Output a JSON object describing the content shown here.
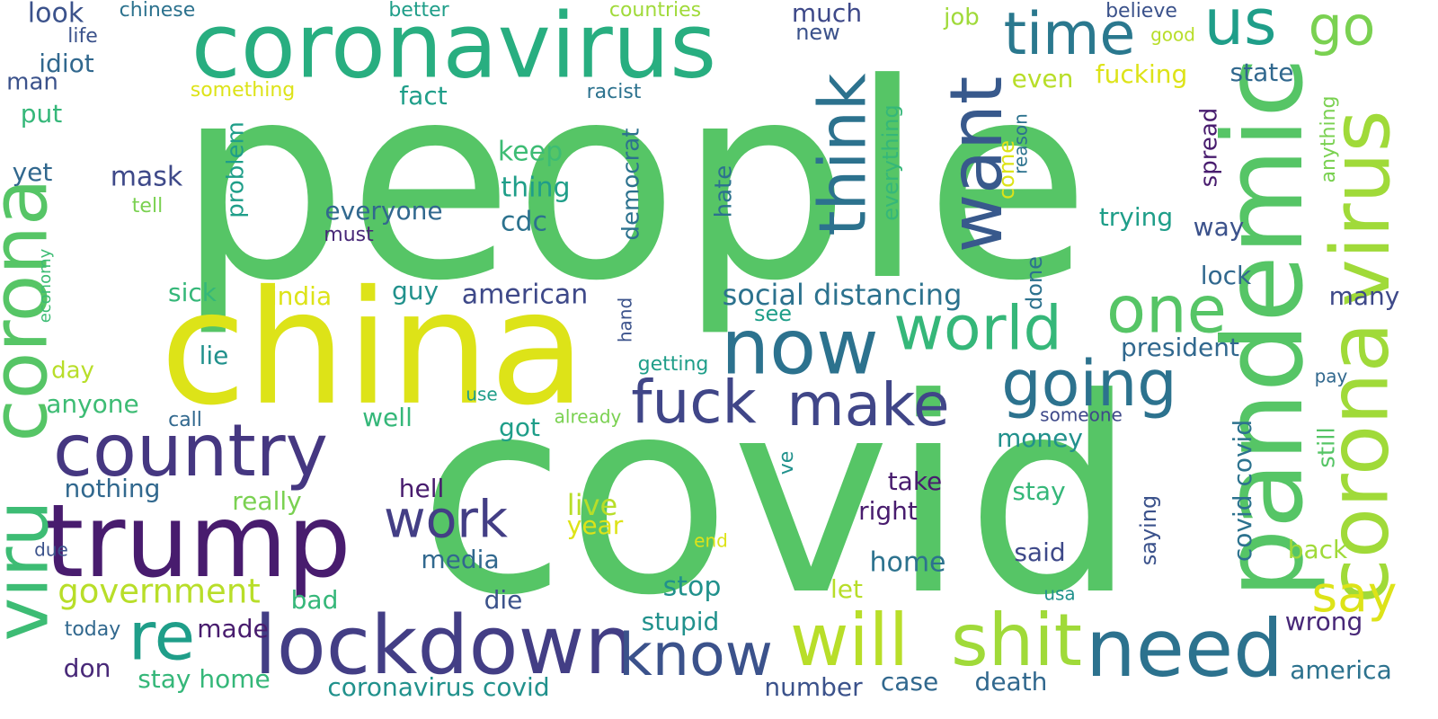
{
  "words": [
    {
      "text": "people",
      "color": "#56c566"
    },
    {
      "text": "covid",
      "color": "#56c566"
    },
    {
      "text": "coronavirus",
      "color": "#28ae80"
    },
    {
      "text": "china",
      "color": "#dde318"
    },
    {
      "text": "pandemic",
      "color": "#56c566"
    },
    {
      "text": "trump",
      "color": "#481c6e"
    },
    {
      "text": "lockdown",
      "color": "#433e85"
    },
    {
      "text": "country",
      "color": "#453781"
    },
    {
      "text": "virus",
      "color": "#a0da39"
    },
    {
      "text": "corona",
      "color": "#a0da39"
    },
    {
      "text": "corona",
      "color": "#56c566"
    },
    {
      "text": "viru",
      "color": "#3dbc74"
    },
    {
      "text": "will",
      "color": "#b8de29"
    },
    {
      "text": "shit",
      "color": "#a0da39"
    },
    {
      "text": "need",
      "color": "#2c728e"
    },
    {
      "text": "now",
      "color": "#2c728e"
    },
    {
      "text": "want",
      "color": "#38598c"
    },
    {
      "text": "think",
      "color": "#2c728e"
    },
    {
      "text": "time",
      "color": "#2a788e"
    },
    {
      "text": "us",
      "color": "#1f9e89"
    },
    {
      "text": "go",
      "color": "#7ad151"
    },
    {
      "text": "one",
      "color": "#56c566"
    },
    {
      "text": "world",
      "color": "#35b779"
    },
    {
      "text": "going",
      "color": "#2c728e"
    },
    {
      "text": "fuck",
      "color": "#404688"
    },
    {
      "text": "make",
      "color": "#404688"
    },
    {
      "text": "work",
      "color": "#433e85"
    },
    {
      "text": "know",
      "color": "#3b528b"
    },
    {
      "text": "re",
      "color": "#1f9e89"
    },
    {
      "text": "say",
      "color": "#dde318"
    },
    {
      "text": "government",
      "color": "#b8de29"
    },
    {
      "text": "look",
      "color": "#3b528b"
    },
    {
      "text": "chinese",
      "color": "#2c728e"
    },
    {
      "text": "better",
      "color": "#1f9e89"
    },
    {
      "text": "countries",
      "color": "#a0da39"
    },
    {
      "text": "much",
      "color": "#3e4989"
    },
    {
      "text": "new",
      "color": "#3b528b"
    },
    {
      "text": "job",
      "color": "#a0da39"
    },
    {
      "text": "believe",
      "color": "#3b528b"
    },
    {
      "text": "good",
      "color": "#b8de29"
    },
    {
      "text": "life",
      "color": "#3b528b"
    },
    {
      "text": "idiot",
      "color": "#31688e"
    },
    {
      "text": "man",
      "color": "#3b528b"
    },
    {
      "text": "something",
      "color": "#dde318"
    },
    {
      "text": "racist",
      "color": "#2c728e"
    },
    {
      "text": "fact",
      "color": "#1f9e89"
    },
    {
      "text": "fucking",
      "color": "#dde318"
    },
    {
      "text": "even",
      "color": "#b8de29"
    },
    {
      "text": "state",
      "color": "#31688e"
    },
    {
      "text": "put",
      "color": "#35b779"
    },
    {
      "text": "yet",
      "color": "#31688e"
    },
    {
      "text": "mask",
      "color": "#3e4989"
    },
    {
      "text": "tell",
      "color": "#7ad151"
    },
    {
      "text": "must",
      "color": "#482878"
    },
    {
      "text": "keep",
      "color": "#3dbc74"
    },
    {
      "text": "thing",
      "color": "#1f9e89"
    },
    {
      "text": "cdc",
      "color": "#2c728e"
    },
    {
      "text": "everyone",
      "color": "#31688e"
    },
    {
      "text": "problem",
      "color": "#1f9e89"
    },
    {
      "text": "democrat",
      "color": "#2c728e"
    },
    {
      "text": "hate",
      "color": "#2c728e"
    },
    {
      "text": "everything",
      "color": "#35b779"
    },
    {
      "text": "come",
      "color": "#dde318"
    },
    {
      "text": "reason",
      "color": "#2c728e"
    },
    {
      "text": "spread",
      "color": "#481c6e"
    },
    {
      "text": "anything",
      "color": "#7ad151"
    },
    {
      "text": "trying",
      "color": "#1f9e89"
    },
    {
      "text": "way",
      "color": "#3b528b"
    },
    {
      "text": "lock",
      "color": "#31688e"
    },
    {
      "text": "many",
      "color": "#3e4989"
    },
    {
      "text": "economy",
      "color": "#3dbc74"
    },
    {
      "text": "sick",
      "color": "#35b779"
    },
    {
      "text": "india",
      "color": "#dde318"
    },
    {
      "text": "guy",
      "color": "#21918c"
    },
    {
      "text": "american",
      "color": "#3e4989"
    },
    {
      "text": "social distancing",
      "color": "#2c728e"
    },
    {
      "text": "see",
      "color": "#1f9e89"
    },
    {
      "text": "done",
      "color": "#2c728e"
    },
    {
      "text": "president",
      "color": "#31688e"
    },
    {
      "text": "lie",
      "color": "#21918c"
    },
    {
      "text": "day",
      "color": "#b8de29"
    },
    {
      "text": "anyone",
      "color": "#3dbc74"
    },
    {
      "text": "call",
      "color": "#31688e"
    },
    {
      "text": "use",
      "color": "#1f9e89"
    },
    {
      "text": "hand",
      "color": "#3b528b"
    },
    {
      "text": "getting",
      "color": "#1f9e89"
    },
    {
      "text": "already",
      "color": "#7ad151"
    },
    {
      "text": "well",
      "color": "#35b779"
    },
    {
      "text": "got",
      "color": "#1f9e89"
    },
    {
      "text": "someone",
      "color": "#3e4989"
    },
    {
      "text": "pay",
      "color": "#31688e"
    },
    {
      "text": "still",
      "color": "#56c566"
    },
    {
      "text": "money",
      "color": "#21918c"
    },
    {
      "text": "ve",
      "color": "#21918c"
    },
    {
      "text": "covid covid",
      "color": "#2c728e"
    },
    {
      "text": "nothing",
      "color": "#31688e"
    },
    {
      "text": "really",
      "color": "#7ad151"
    },
    {
      "text": "hell",
      "color": "#481c6e"
    },
    {
      "text": "take",
      "color": "#481c6e"
    },
    {
      "text": "right",
      "color": "#481c6e"
    },
    {
      "text": "stay",
      "color": "#35b779"
    },
    {
      "text": "saying",
      "color": "#3b528b"
    },
    {
      "text": "live",
      "color": "#b8de29"
    },
    {
      "text": "year",
      "color": "#dde318"
    },
    {
      "text": "due",
      "color": "#3b528b"
    },
    {
      "text": "end",
      "color": "#dde318"
    },
    {
      "text": "back",
      "color": "#a0da39"
    },
    {
      "text": "said",
      "color": "#3e4989"
    },
    {
      "text": "media",
      "color": "#31688e"
    },
    {
      "text": "home",
      "color": "#2c728e"
    },
    {
      "text": "die",
      "color": "#3b528b"
    },
    {
      "text": "stop",
      "color": "#21918c"
    },
    {
      "text": "let",
      "color": "#b8de29"
    },
    {
      "text": "usa",
      "color": "#21918c"
    },
    {
      "text": "bad",
      "color": "#35b779"
    },
    {
      "text": "today",
      "color": "#31688e"
    },
    {
      "text": "made",
      "color": "#481c6e"
    },
    {
      "text": "stupid",
      "color": "#21918c"
    },
    {
      "text": "wrong",
      "color": "#482878"
    },
    {
      "text": "don",
      "color": "#482878"
    },
    {
      "text": "stay home",
      "color": "#35b779"
    },
    {
      "text": "coronavirus covid",
      "color": "#21918c"
    },
    {
      "text": "number",
      "color": "#3b528b"
    },
    {
      "text": "case",
      "color": "#31688e"
    },
    {
      "text": "death",
      "color": "#31688e"
    },
    {
      "text": "america",
      "color": "#2c728e"
    }
  ]
}
